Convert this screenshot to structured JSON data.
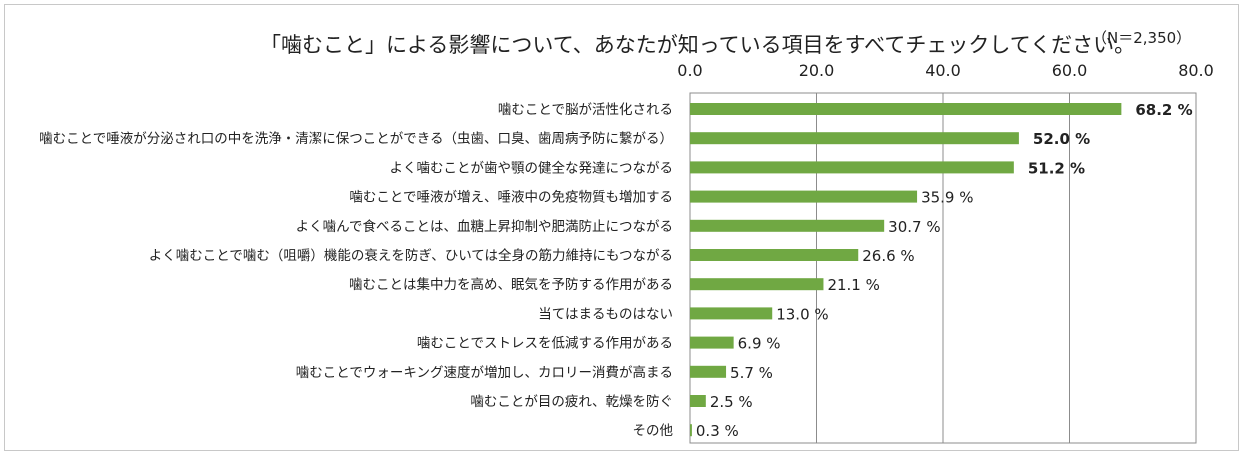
{
  "chart_data": {
    "type": "bar",
    "orientation": "horizontal",
    "title": "「噛むこと」による影響について、あなたが知っている項目をすべてチェックしてください。",
    "note": "（N＝2,350）",
    "xlim": [
      0,
      80
    ],
    "ticks": [
      "0.0",
      "20.0",
      "40.0",
      "60.0",
      "80.0"
    ],
    "tick_values": [
      0,
      20,
      40,
      60,
      80
    ],
    "unit": "%",
    "bar_color": "#70a843",
    "bold_top": 3,
    "categories": [
      "噛むことで脳が活性化される",
      "噛むことで唾液が分泌され口の中を洗浄・清潔に保つことができる（虫歯、口臭、歯周病予防に繋がる）",
      "よく噛むことが歯や顎の健全な発達につながる",
      "噛むことで唾液が増え、唾液中の免疫物質も増加する",
      "よく噛んで食べることは、血糖上昇抑制や肥満防止につながる",
      "よく噛むことで噛む（咀嚼）機能の衰えを防ぎ、ひいては全身の筋力維持にもつながる",
      "噛むことは集中力を高め、眠気を予防する作用がある",
      "当てはまるものはない",
      "噛むことでストレスを低減する作用がある",
      "噛むことでウォーキング速度が増加し、カロリー消費が高まる",
      "噛むことが目の疲れ、乾燥を防ぐ",
      "その他"
    ],
    "values": [
      68.2,
      52.0,
      51.2,
      35.9,
      30.7,
      26.6,
      21.1,
      13.0,
      6.9,
      5.7,
      2.5,
      0.3
    ],
    "value_labels": [
      "68.2 %",
      "52.0 %",
      "51.2 %",
      "35.9 %",
      "30.7 %",
      "26.6 %",
      "21.1 %",
      "13.0 %",
      "6.9 %",
      "5.7 %",
      "2.5 %",
      "0.3 %"
    ]
  }
}
